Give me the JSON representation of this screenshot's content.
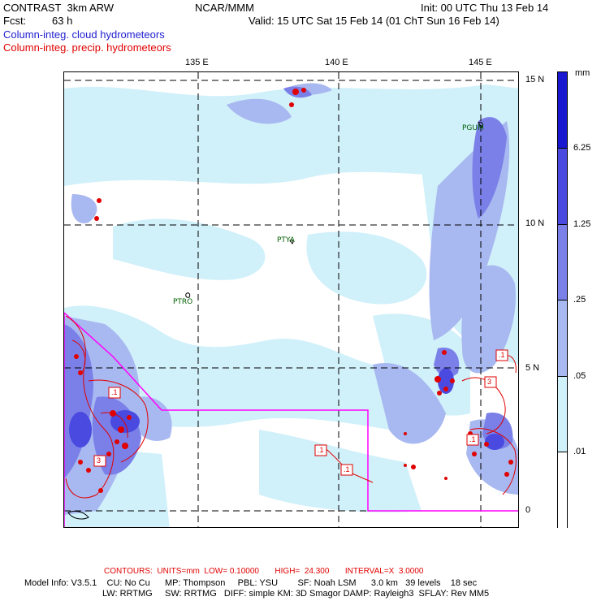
{
  "header": {
    "title": "CONTRAST  3km ARW",
    "org": "NCAR/MMM",
    "init": "Init: 00 UTC Thu 13 Feb 14",
    "fcst_label": "Fcst:",
    "fcst_value": "63 h",
    "valid": "Valid: 15 UTC Sat 15 Feb 14 (01 ChT Sun 16 Feb 14)",
    "field_cloud": "Column-integ. cloud hydrometeors",
    "field_precip": "Column-integ. precip. hydrometeors"
  },
  "map": {
    "lon_labels": [
      "135 E",
      "140 E",
      "145 E"
    ],
    "lat_labels": [
      "15 N",
      "10 N",
      "5 N",
      "0"
    ],
    "stations": [
      "PGUM",
      "PTYA",
      "PTRO"
    ],
    "contour_labels": [
      ".1",
      "3",
      ".1",
      ".1",
      ".1",
      ".1",
      "3"
    ],
    "colors": {
      "shade_1": "#d0f0fa",
      "shade_2": "#a8b8f0",
      "shade_3": "#7a80e8",
      "shade_4": "#4a4ae0",
      "shade_5": "#1818d0",
      "precip": "#e00000",
      "box": "#ff00ff"
    }
  },
  "colorbar": {
    "unit": "mm",
    "labels": [
      "6.25",
      "1.25",
      ".25",
      ".05",
      ".01"
    ],
    "colors": [
      "#1818d0",
      "#4a4ae0",
      "#7a80e8",
      "#a8b8f0",
      "#d0f0fa",
      "#ffffff"
    ]
  },
  "footer": {
    "contours": "CONTOURS:  UNITS=mm  LOW= 0.10000       HIGH=  24.300       INTERVAL=X  3.0000",
    "model_info": "Model Info: V3.5.1    CU: No Cu      MP: Thompson     PBL: YSU        SF: Noah LSM      3.0 km   39 levels    18 sec",
    "model_info2": "LW: RRTMG     SW: RRTMG   DIFF: simple KM: 3D Smagor DAMP: Rayleigh3  SFLAY: Rev MM5"
  }
}
